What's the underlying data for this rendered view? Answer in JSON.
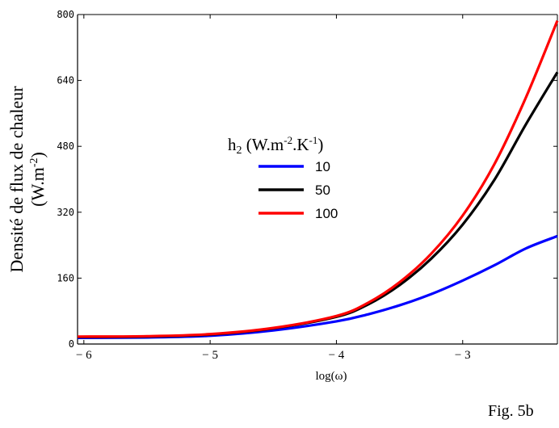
{
  "chart_data": {
    "type": "line",
    "title": "",
    "xlabel": "log(ω)",
    "ylabel_line1": "Densité de flux de chaleur",
    "ylabel_line2": "(W.m",
    "ylabel_line2_sup": "-2",
    "ylabel_line2_end": ")",
    "xlim": [
      -6.05,
      -2.25
    ],
    "ylim": [
      0,
      800
    ],
    "x_ticks": [
      -6,
      -5,
      -4,
      -3
    ],
    "x_tick_labels": [
      "− 6",
      "− 5",
      "− 4",
      "− 3"
    ],
    "y_ticks": [
      0,
      160,
      320,
      480,
      640,
      800
    ],
    "y_tick_labels": [
      "0",
      "160",
      "320",
      "480",
      "640",
      "800"
    ],
    "grid": false,
    "legend": {
      "placement": "center",
      "title_main": "h",
      "title_sub": "2",
      "title_unit1": " (W.m",
      "title_sup1": "-2",
      "title_unit2": ".K",
      "title_sup2": "-1",
      "title_end": ")"
    },
    "series": [
      {
        "name": "10",
        "color": "#0000ff",
        "x": [
          -6.05,
          -5.5,
          -5.0,
          -4.5,
          -4.0,
          -3.75,
          -3.5,
          -3.25,
          -3.0,
          -2.75,
          -2.5,
          -2.25
        ],
        "y": [
          15,
          16,
          20,
          33,
          55,
          72,
          94,
          121,
          154,
          191,
          232,
          262
        ]
      },
      {
        "name": "50",
        "color": "#000000",
        "x": [
          -6.05,
          -5.5,
          -5.0,
          -4.5,
          -4.0,
          -3.75,
          -3.5,
          -3.25,
          -3.0,
          -2.75,
          -2.5,
          -2.25
        ],
        "y": [
          17,
          18,
          23,
          38,
          66,
          96,
          143,
          207,
          290,
          398,
          533,
          660
        ]
      },
      {
        "name": "100",
        "color": "#ff0000",
        "x": [
          -6.05,
          -5.5,
          -5.0,
          -4.5,
          -4.0,
          -3.75,
          -3.5,
          -3.25,
          -3.0,
          -2.75,
          -2.5,
          -2.25
        ],
        "y": [
          18,
          19,
          24,
          39,
          68,
          100,
          150,
          219,
          312,
          436,
          598,
          785
        ]
      }
    ]
  },
  "figure_label": "Fig. 5b"
}
